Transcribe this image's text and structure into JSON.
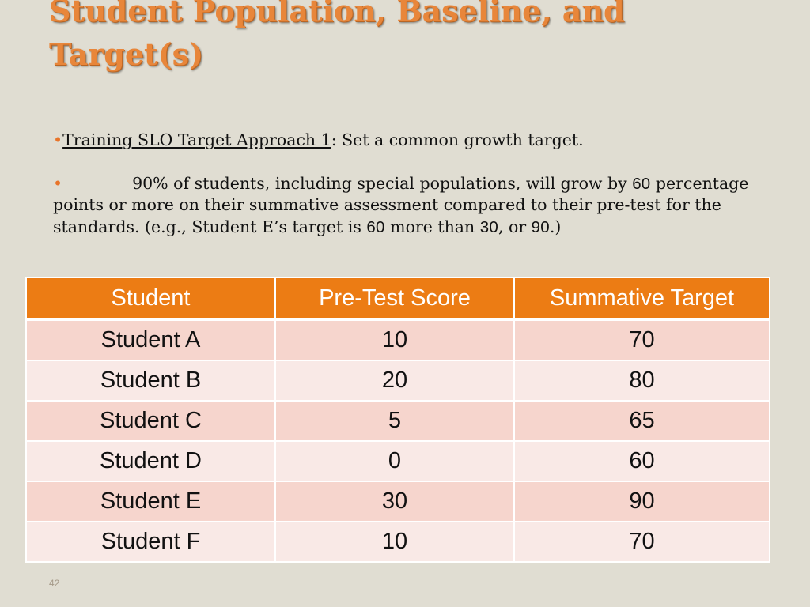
{
  "slide": {
    "title": "Student Population, Baseline, and Target(s)",
    "bullet1": {
      "bullet": "•",
      "link": "Training SLO Target Approach 1",
      "text": ": Set a common growth target."
    },
    "bullet2": {
      "bullet": "•",
      "text_a": "90% of students, including special populations, will grow by ",
      "num_a": "60",
      "text_b": " percentage points or more on their summative assessment compared to their pre-test for the standards. (e.g., Student E’s target is ",
      "num_b": "60",
      "text_c": " more than ",
      "num_c": "30",
      "text_d": ", or ",
      "num_d": "90",
      "text_e": ".)"
    },
    "page_number": "42"
  },
  "table": {
    "headers": [
      "Student",
      "Pre-Test Score",
      "Summative Target"
    ],
    "rows": [
      [
        "Student A",
        "10",
        "70"
      ],
      [
        "Student B",
        "20",
        "80"
      ],
      [
        "Student C",
        "5",
        "65"
      ],
      [
        "Student D",
        "0",
        "60"
      ],
      [
        "Student E",
        "30",
        "90"
      ],
      [
        "Student F",
        "10",
        "70"
      ]
    ]
  },
  "colors": {
    "title": "#e8863a",
    "header_bg": "#ec7c14",
    "row_dark": "#f6d5cd",
    "row_light": "#f9e9e6",
    "background": "#e0ddd2"
  }
}
